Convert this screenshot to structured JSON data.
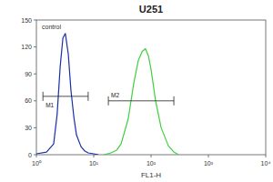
{
  "chart_data": {
    "type": "line",
    "title": "U251",
    "x_label": "FL1-H",
    "log": "x",
    "xlim": [
      1,
      10000
    ],
    "xticks": [
      {
        "value": 1,
        "label": "10⁰"
      },
      {
        "value": 10,
        "label": "10¹"
      },
      {
        "value": 100,
        "label": "10²"
      },
      {
        "value": 1000,
        "label": "10³"
      },
      {
        "value": 10000,
        "label": "10⁴"
      }
    ],
    "ylim": [
      0,
      150
    ],
    "yticks": [
      0,
      30,
      60,
      90,
      120,
      150
    ],
    "series": [
      {
        "name": "control",
        "color": "#1a2fa8",
        "x": [
          1,
          1.5,
          2,
          2.3,
          2.6,
          2.9,
          3.2,
          3.6,
          4,
          4.5,
          5,
          6,
          7,
          8,
          10,
          12
        ],
        "values": [
          1,
          3,
          12,
          45,
          98,
          130,
          135,
          112,
          72,
          42,
          22,
          9,
          4,
          2,
          1,
          0
        ]
      },
      {
        "color": "#3fcf3f",
        "x": [
          15,
          20,
          25,
          30,
          40,
          50,
          60,
          70,
          80,
          90,
          100,
          120,
          150,
          200,
          250,
          300
        ],
        "values": [
          0,
          2,
          5,
          12,
          40,
          80,
          105,
          115,
          118,
          110,
          95,
          60,
          30,
          10,
          3,
          0
        ]
      }
    ],
    "gates": [
      {
        "label": "M1",
        "x": [
          1.3,
          8
        ],
        "y": 65
      },
      {
        "label": "M2",
        "x": [
          18,
          250
        ],
        "y": 60
      }
    ]
  }
}
